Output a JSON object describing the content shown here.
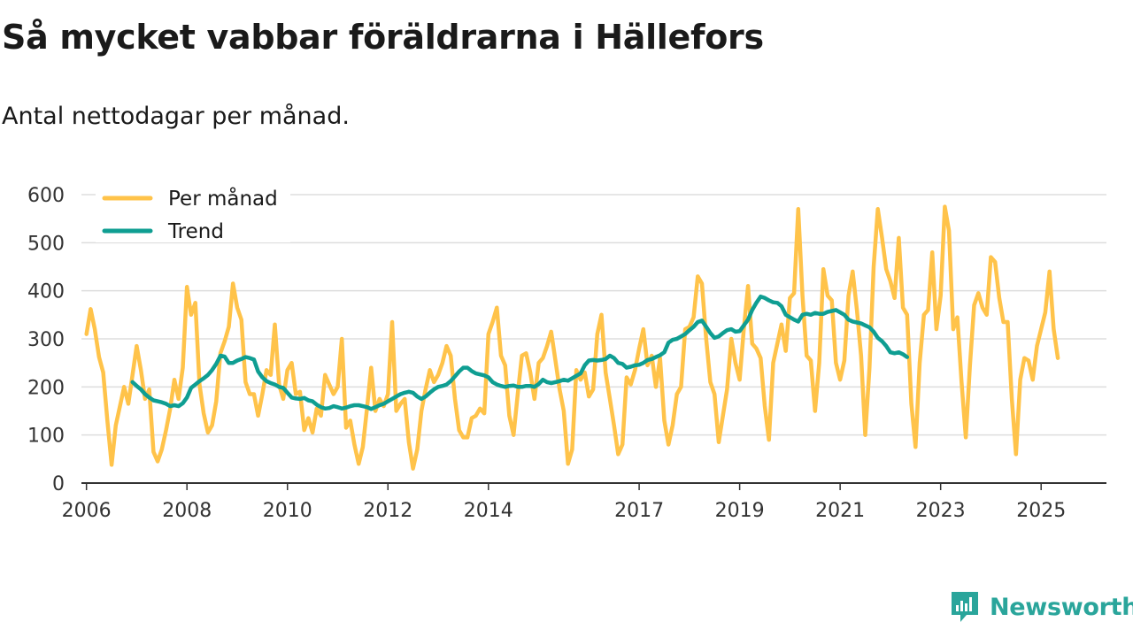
{
  "header": {
    "title": "Så mycket vabbar föräldrarna i Hällefors",
    "subtitle": "Antal nettodagar per månad."
  },
  "brand": {
    "name": "Newsworthy",
    "icon": "newsworthy-logo-icon",
    "color": "#2aa59b"
  },
  "chart_data": {
    "type": "line",
    "title": "Så mycket vabbar föräldrarna i Hällefors",
    "subtitle": "Antal nettodagar per månad.",
    "xlabel": "",
    "ylabel": "",
    "x_start": "2006-01",
    "x_step": "month",
    "xlim": [
      2005.9,
      2026.3
    ],
    "ylim": [
      0,
      600
    ],
    "yticks": [
      0,
      100,
      200,
      300,
      400,
      500,
      600
    ],
    "xticks": [
      2006,
      2008,
      2010,
      2012,
      2014,
      2017,
      2019,
      2021,
      2023,
      2025
    ],
    "grid": true,
    "legend": "top-left",
    "series": [
      {
        "name": "Per månad",
        "color": "#ffc34a",
        "start": 2006.0,
        "values": [
          310,
          362,
          320,
          262,
          230,
          130,
          38,
          120,
          160,
          200,
          165,
          225,
          285,
          235,
          175,
          195,
          65,
          45,
          70,
          110,
          155,
          215,
          175,
          240,
          408,
          350,
          375,
          205,
          145,
          105,
          120,
          170,
          270,
          295,
          325,
          415,
          365,
          340,
          210,
          185,
          185,
          140,
          185,
          235,
          225,
          330,
          205,
          175,
          235,
          250,
          185,
          190,
          110,
          135,
          105,
          155,
          140,
          225,
          205,
          185,
          200,
          300,
          115,
          130,
          80,
          40,
          75,
          155,
          240,
          150,
          175,
          160,
          185,
          335,
          150,
          165,
          175,
          85,
          30,
          70,
          150,
          195,
          235,
          210,
          225,
          250,
          285,
          265,
          175,
          110,
          95,
          95,
          135,
          140,
          155,
          145,
          310,
          335,
          365,
          265,
          245,
          140,
          100,
          185,
          265,
          270,
          230,
          175,
          250,
          260,
          285,
          315,
          255,
          195,
          150,
          40,
          70,
          235,
          215,
          230,
          180,
          195,
          310,
          350,
          230,
          175,
          120,
          60,
          80,
          220,
          205,
          235,
          280,
          320,
          245,
          265,
          200,
          260,
          130,
          80,
          120,
          185,
          200,
          320,
          325,
          345,
          430,
          415,
          300,
          210,
          185,
          85,
          140,
          195,
          300,
          250,
          215,
          320,
          410,
          290,
          280,
          260,
          160,
          90,
          250,
          290,
          330,
          275,
          385,
          395,
          570,
          390,
          265,
          255,
          150,
          250,
          445,
          390,
          380,
          250,
          215,
          255,
          390,
          440,
          360,
          265,
          100,
          240,
          450,
          570,
          510,
          445,
          420,
          385,
          510,
          365,
          350,
          165,
          75,
          250,
          350,
          360,
          480,
          320,
          390,
          575,
          525,
          320,
          345,
          210,
          95,
          245,
          370,
          395,
          365,
          350,
          470,
          460,
          385,
          335,
          335,
          175,
          60,
          215,
          260,
          255,
          215,
          285,
          320,
          355,
          440,
          320,
          260
        ]
      },
      {
        "name": "Trend",
        "color": "#0f9e92",
        "start": 2006.9167,
        "values": [
          210,
          202,
          195,
          185,
          178,
          172,
          170,
          168,
          165,
          160,
          162,
          160,
          166,
          178,
          198,
          205,
          212,
          218,
          225,
          235,
          248,
          265,
          263,
          250,
          250,
          255,
          258,
          262,
          260,
          257,
          232,
          220,
          212,
          208,
          205,
          200,
          198,
          188,
          178,
          176,
          175,
          177,
          172,
          170,
          163,
          158,
          155,
          156,
          160,
          158,
          155,
          157,
          160,
          162,
          162,
          160,
          158,
          154,
          158,
          162,
          165,
          170,
          175,
          180,
          185,
          188,
          190,
          188,
          180,
          175,
          180,
          188,
          195,
          200,
          202,
          205,
          212,
          222,
          232,
          240,
          240,
          233,
          228,
          226,
          224,
          220,
          210,
          205,
          202,
          200,
          202,
          203,
          200,
          200,
          202,
          202,
          200,
          206,
          215,
          210,
          208,
          210,
          212,
          215,
          213,
          218,
          223,
          228,
          245,
          255,
          256,
          255,
          256,
          258,
          265,
          260,
          250,
          248,
          240,
          242,
          245,
          246,
          250,
          256,
          258,
          262,
          266,
          272,
          292,
          298,
          300,
          305,
          310,
          318,
          325,
          335,
          338,
          325,
          312,
          302,
          305,
          312,
          318,
          320,
          315,
          316,
          328,
          340,
          360,
          375,
          388,
          385,
          380,
          376,
          375,
          368,
          350,
          345,
          340,
          336,
          350,
          352,
          350,
          354,
          352,
          352,
          356,
          358,
          360,
          355,
          350,
          340,
          336,
          334,
          332,
          328,
          324,
          315,
          302,
          295,
          285,
          272,
          270,
          272,
          268,
          262
        ]
      }
    ]
  }
}
